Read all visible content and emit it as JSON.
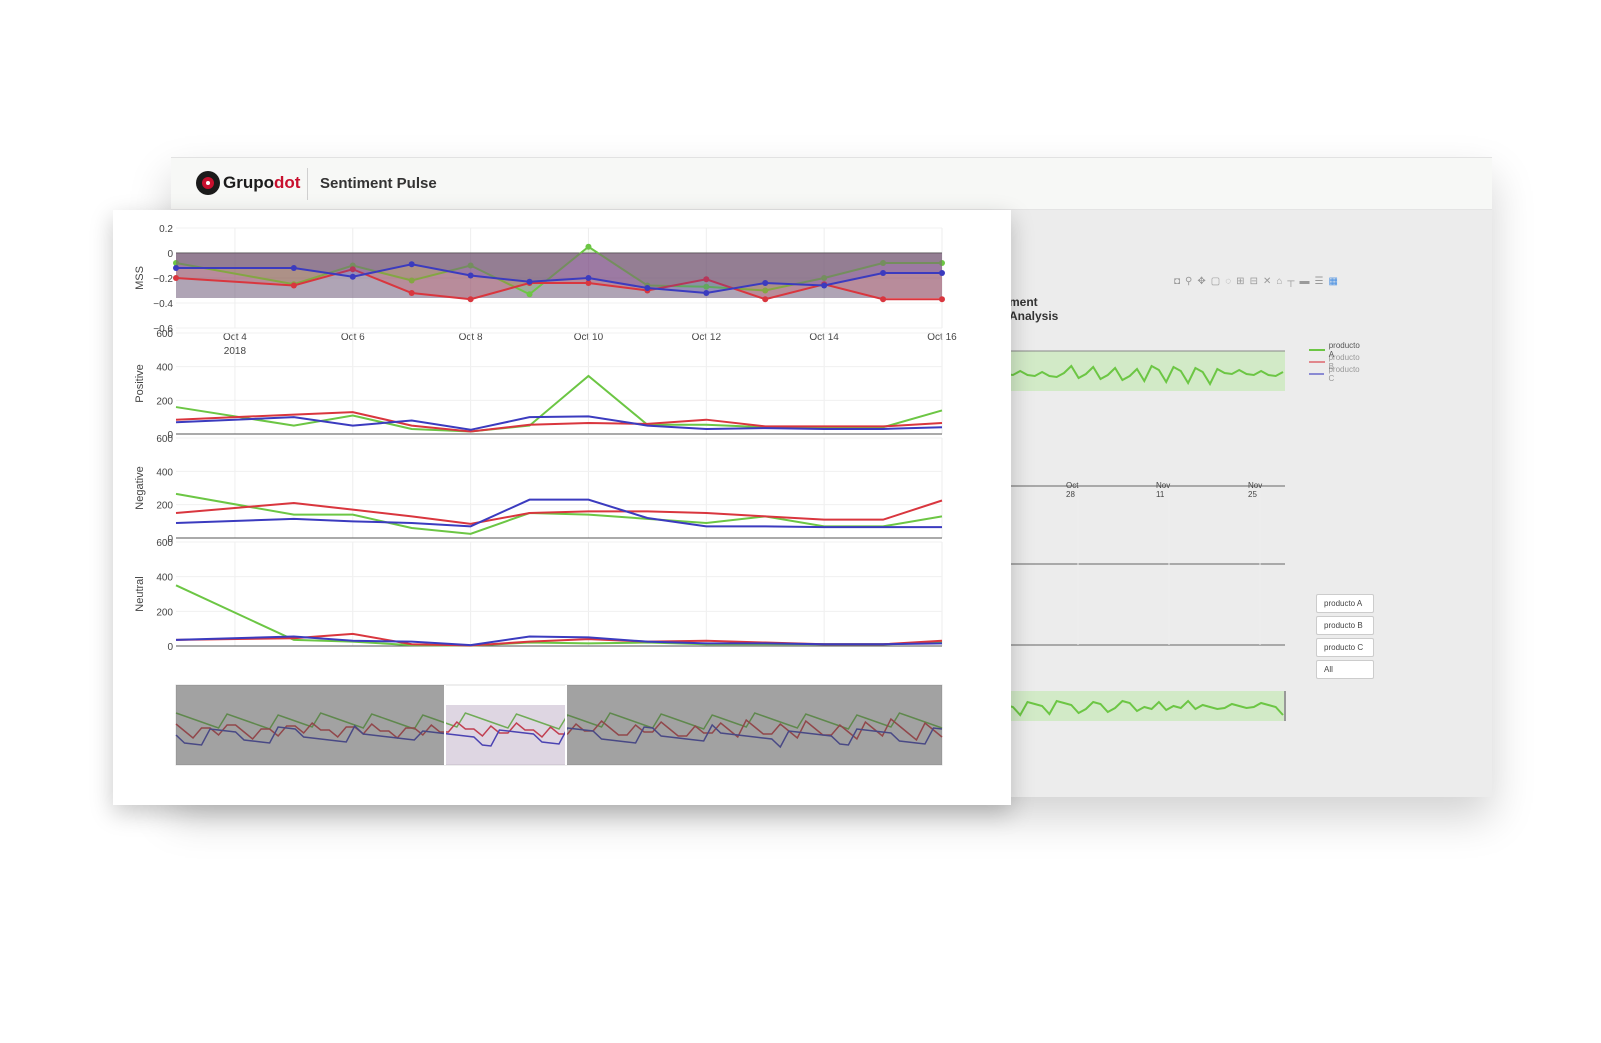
{
  "brand": {
    "name_part1": "Grupo",
    "name_part2": "dot",
    "app_title": "Sentiment Pulse",
    "accent_color": "#c8102e"
  },
  "colors": {
    "producto_A": "#6cc644",
    "producto_B": "#d9363e",
    "producto_C": "#3b3bbf"
  },
  "background_panel": {
    "section_title": "ment Analysis",
    "modebar_icons": [
      "camera-icon",
      "zoom-icon",
      "pan-icon",
      "box-select-icon",
      "lasso-icon",
      "zoom-in-icon",
      "zoom-out-icon",
      "autoscale-icon",
      "reset-axes-icon",
      "spike-lines-icon",
      "hover-closest-icon",
      "hover-compare-icon",
      "plotly-logo-icon"
    ],
    "legend": [
      "producto A",
      "producto B",
      "producto C"
    ],
    "x_ticks": [
      "14",
      "Oct 28",
      "Nov 11",
      "Nov 25"
    ],
    "filter_buttons": [
      "producto A",
      "producto B",
      "producto C",
      "All"
    ]
  },
  "chart_data": [
    {
      "type": "line",
      "ylabel": "MSS",
      "ylim": [
        -0.6,
        0.2
      ],
      "yticks": [
        "0.2",
        "0",
        "−0.2",
        "−0.4",
        "−0.6"
      ],
      "x": [
        "2018-10-03",
        "2018-10-05",
        "2018-10-06",
        "2018-10-07",
        "2018-10-08",
        "2018-10-09",
        "2018-10-10",
        "2018-10-11",
        "2018-10-12",
        "2018-10-13",
        "2018-10-14",
        "2018-10-15",
        "2018-10-16"
      ],
      "x_ticks": [
        {
          "label": "Oct 4",
          "sub": "2018",
          "date": "2018-10-04"
        },
        {
          "label": "Oct 6",
          "date": "2018-10-06"
        },
        {
          "label": "Oct 8",
          "date": "2018-10-08"
        },
        {
          "label": "Oct 10",
          "date": "2018-10-10"
        },
        {
          "label": "Oct 12",
          "date": "2018-10-12"
        },
        {
          "label": "Oct 14",
          "date": "2018-10-14"
        },
        {
          "label": "Oct 16",
          "date": "2018-10-16"
        }
      ],
      "series": [
        {
          "key": "A",
          "values": [
            -0.08,
            -0.25,
            -0.1,
            -0.22,
            -0.1,
            -0.33,
            0.05,
            -0.26,
            -0.27,
            -0.3,
            -0.2,
            -0.08,
            -0.08
          ]
        },
        {
          "key": "B",
          "values": [
            -0.2,
            -0.26,
            -0.13,
            -0.32,
            -0.37,
            -0.24,
            -0.24,
            -0.3,
            -0.21,
            -0.37,
            -0.25,
            -0.37,
            -0.37
          ]
        },
        {
          "key": "C",
          "values": [
            -0.12,
            -0.12,
            -0.19,
            -0.09,
            -0.18,
            -0.23,
            -0.2,
            -0.28,
            -0.32,
            -0.24,
            -0.26,
            -0.16,
            -0.16
          ]
        }
      ]
    },
    {
      "type": "line",
      "ylabel": "Positive",
      "ylim": [
        0,
        600
      ],
      "yticks": [
        "600",
        "400",
        "200",
        "0"
      ],
      "x": [
        "2018-10-03",
        "2018-10-05",
        "2018-10-06",
        "2018-10-07",
        "2018-10-08",
        "2018-10-09",
        "2018-10-10",
        "2018-10-11",
        "2018-10-12",
        "2018-10-13",
        "2018-10-14",
        "2018-10-15",
        "2018-10-16"
      ],
      "series": [
        {
          "key": "A",
          "values": [
            160,
            50,
            110,
            30,
            15,
            50,
            345,
            55,
            55,
            40,
            40,
            40,
            140
          ]
        },
        {
          "key": "B",
          "values": [
            85,
            115,
            130,
            50,
            15,
            55,
            65,
            60,
            85,
            45,
            45,
            45,
            65
          ]
        },
        {
          "key": "C",
          "values": [
            70,
            100,
            50,
            80,
            25,
            100,
            105,
            50,
            30,
            35,
            30,
            30,
            40
          ]
        }
      ]
    },
    {
      "type": "line",
      "ylabel": "Negative",
      "ylim": [
        0,
        600
      ],
      "yticks": [
        "600",
        "400",
        "200",
        "0"
      ],
      "x": [
        "2018-10-03",
        "2018-10-05",
        "2018-10-06",
        "2018-10-07",
        "2018-10-08",
        "2018-10-09",
        "2018-10-10",
        "2018-10-11",
        "2018-10-12",
        "2018-10-13",
        "2018-10-14",
        "2018-10-15",
        "2018-10-16"
      ],
      "series": [
        {
          "key": "A",
          "values": [
            265,
            140,
            140,
            60,
            25,
            150,
            140,
            115,
            90,
            130,
            70,
            70,
            130
          ]
        },
        {
          "key": "B",
          "values": [
            150,
            210,
            170,
            130,
            85,
            150,
            160,
            160,
            150,
            130,
            110,
            110,
            225
          ]
        },
        {
          "key": "C",
          "values": [
            90,
            115,
            100,
            90,
            70,
            230,
            230,
            120,
            70,
            70,
            65,
            65,
            65
          ]
        }
      ]
    },
    {
      "type": "line",
      "ylabel": "Neutral",
      "ylim": [
        0,
        600
      ],
      "yticks": [
        "600",
        "400",
        "200",
        "0"
      ],
      "x": [
        "2018-10-03",
        "2018-10-05",
        "2018-10-06",
        "2018-10-07",
        "2018-10-08",
        "2018-10-09",
        "2018-10-10",
        "2018-10-11",
        "2018-10-12",
        "2018-10-13",
        "2018-10-14",
        "2018-10-15",
        "2018-10-16"
      ],
      "series": [
        {
          "key": "A",
          "values": [
            350,
            35,
            25,
            5,
            2,
            20,
            15,
            20,
            10,
            10,
            10,
            10,
            20
          ]
        },
        {
          "key": "B",
          "values": [
            35,
            45,
            70,
            10,
            3,
            25,
            40,
            25,
            30,
            20,
            10,
            10,
            30
          ]
        },
        {
          "key": "C",
          "values": [
            35,
            55,
            30,
            25,
            5,
            55,
            50,
            25,
            15,
            15,
            10,
            10,
            15
          ]
        }
      ]
    }
  ]
}
